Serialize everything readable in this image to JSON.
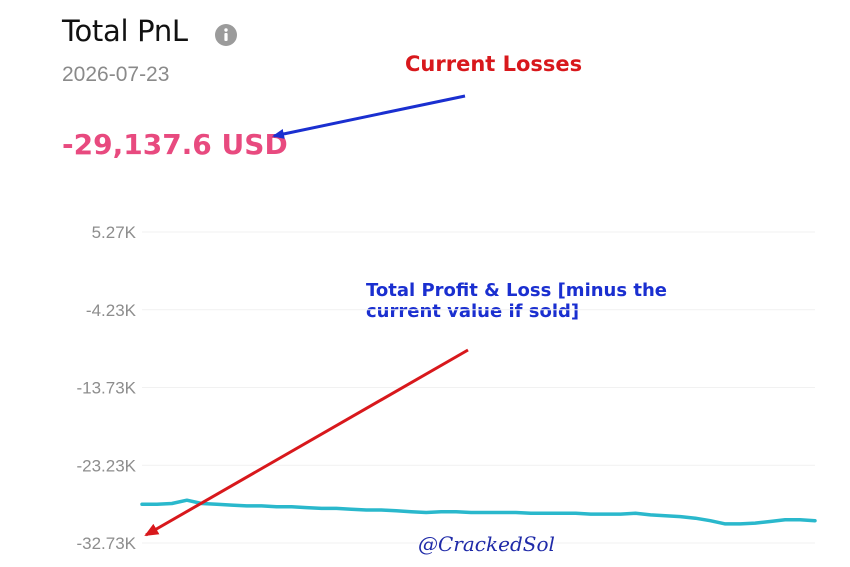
{
  "header": {
    "title": "Total PnL",
    "info_icon": "info-icon",
    "date": "2026-07-23",
    "pnl_value": "-29,137.6 USD"
  },
  "annotations": {
    "current_losses": "Current Losses",
    "total_profit_loss_line1": "Total Profit & Loss [minus the",
    "total_profit_loss_line2": "current value if sold]"
  },
  "watermark": "@CrackedSol",
  "colors": {
    "line": "#2ab8cc",
    "pnl_negative": "#e84a7f",
    "annotation_red": "#d8181c",
    "annotation_blue": "#1a2fd0"
  },
  "chart_data": {
    "type": "line",
    "y_ticks": [
      "5.27K",
      "-4.23K",
      "-13.73K",
      "-23.23K",
      "-32.73K"
    ],
    "ylim": [
      -32730,
      5270
    ],
    "grid": true,
    "series": [
      {
        "values": [
          -28000,
          -28000,
          -27900,
          -27500,
          -27900,
          -28000,
          -28100,
          -28200,
          -28200,
          -28300,
          -28300,
          -28400,
          -28500,
          -28500,
          -28600,
          -28700,
          -28700,
          -28800,
          -28900,
          -29000,
          -28900,
          -28900,
          -29000,
          -29000,
          -29000,
          -29000,
          -29100,
          -29100,
          -29100,
          -29100,
          -29200,
          -29200,
          -29200,
          -29100,
          -29300,
          -29400,
          -29500,
          -29700,
          -30000,
          -30400,
          -30400,
          -30300,
          -30100,
          -29900,
          -29900,
          -30000
        ]
      }
    ]
  }
}
